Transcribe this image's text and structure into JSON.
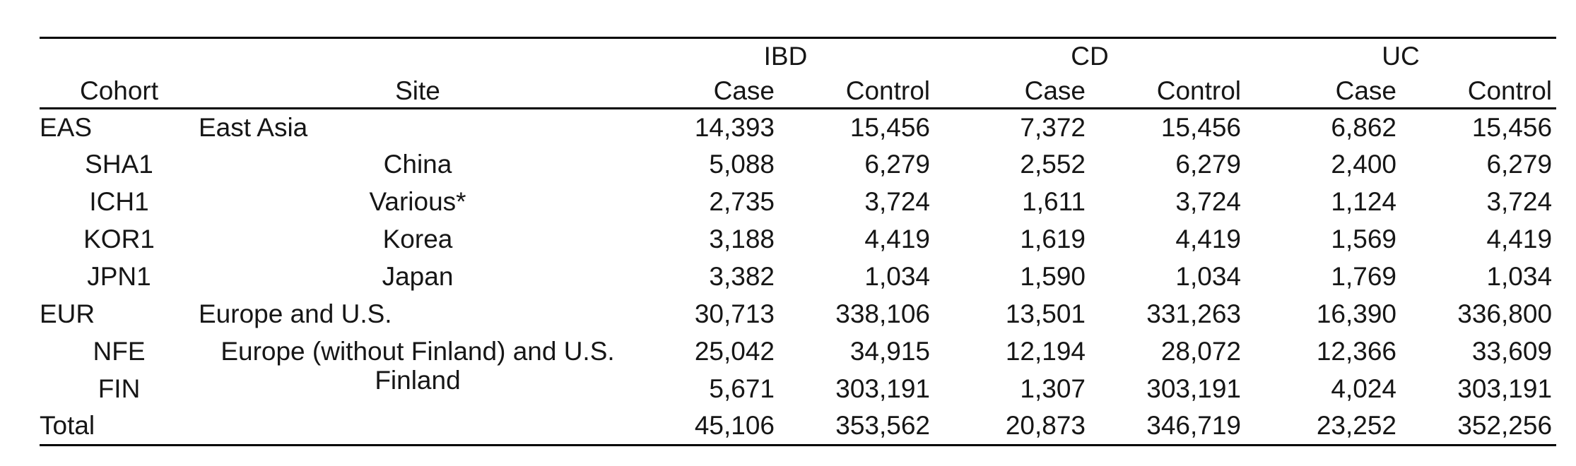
{
  "colors": {
    "background": "#ffffff",
    "text": "#161616",
    "rule": "#000000"
  },
  "table": {
    "group_headers": [
      "IBD",
      "CD",
      "UC"
    ],
    "columns": [
      "Cohort",
      "Site",
      "Case",
      "Control",
      "Case",
      "Control",
      "Case",
      "Control"
    ],
    "rows": [
      {
        "cohort": "EAS",
        "site": "East Asia",
        "level": "parent",
        "site_raised": false,
        "values": [
          "14,393",
          "15,456",
          "7,372",
          "15,456",
          "6,862",
          "15,456"
        ]
      },
      {
        "cohort": "SHA1",
        "site": "China",
        "level": "sub",
        "site_raised": false,
        "values": [
          "5,088",
          "6,279",
          "2,552",
          "6,279",
          "2,400",
          "6,279"
        ]
      },
      {
        "cohort": "ICH1",
        "site": "Various*",
        "level": "sub",
        "site_raised": false,
        "values": [
          "2,735",
          "3,724",
          "1,611",
          "3,724",
          "1,124",
          "3,724"
        ]
      },
      {
        "cohort": "KOR1",
        "site": "Korea",
        "level": "sub",
        "site_raised": false,
        "values": [
          "3,188",
          "4,419",
          "1,619",
          "4,419",
          "1,569",
          "4,419"
        ]
      },
      {
        "cohort": "JPN1",
        "site": "Japan",
        "level": "sub",
        "site_raised": false,
        "values": [
          "3,382",
          "1,034",
          "1,590",
          "1,034",
          "1,769",
          "1,034"
        ]
      },
      {
        "cohort": "EUR",
        "site": "Europe and U.S.",
        "level": "parent",
        "site_raised": false,
        "values": [
          "30,713",
          "338,106",
          "13,501",
          "331,263",
          "16,390",
          "336,800"
        ]
      },
      {
        "cohort": "NFE",
        "site": "Europe (without Finland) and U.S.",
        "level": "sub",
        "site_raised": false,
        "values": [
          "25,042",
          "34,915",
          "12,194",
          "28,072",
          "12,366",
          "33,609"
        ]
      },
      {
        "cohort": "FIN",
        "site": "Finland",
        "level": "sub",
        "site_raised": true,
        "values": [
          "5,671",
          "303,191",
          "1,307",
          "303,191",
          "4,024",
          "303,191"
        ]
      },
      {
        "cohort": "Total",
        "site": "",
        "level": "total",
        "site_raised": false,
        "values": [
          "45,106",
          "353,562",
          "20,873",
          "346,719",
          "23,252",
          "352,256"
        ]
      }
    ]
  }
}
